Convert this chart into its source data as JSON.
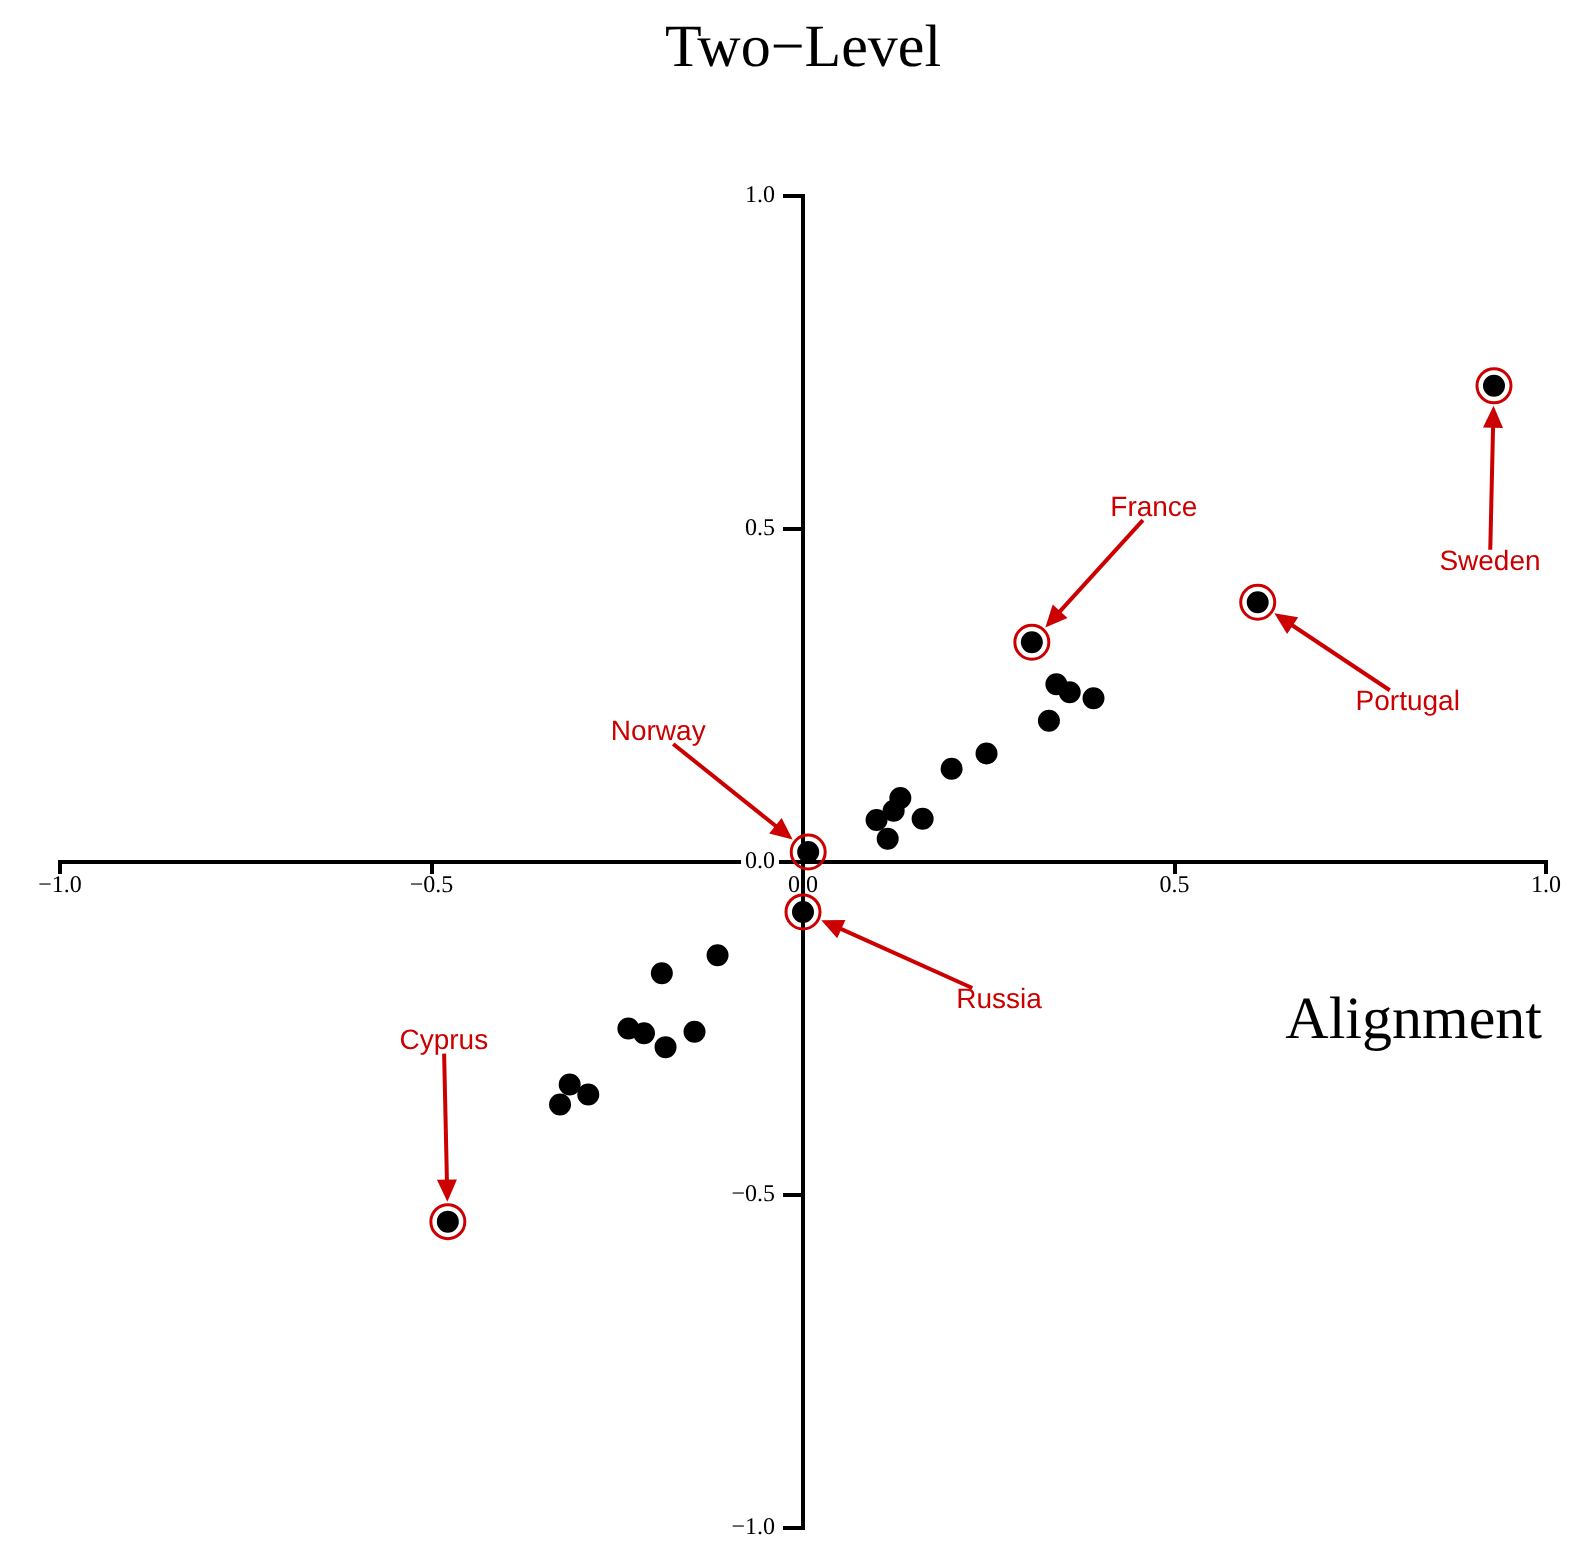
{
  "chart_data": {
    "type": "scatter",
    "xlabel": "Alignment",
    "ylabel": "Two−Level",
    "x": [
      0.93,
      0.612,
      0.308,
      0.007,
      0,
      -0.478,
      -0.115,
      -0.19,
      -0.235,
      -0.214,
      -0.185,
      -0.146,
      -0.314,
      -0.289,
      -0.327,
      0.341,
      0.359,
      0.391,
      0.331,
      0.247,
      0.2,
      0.131,
      0.122,
      0.099,
      0.161,
      0.114
    ],
    "series": [
      {
        "color": "#000000",
        "values": [
          0.715,
          0.39,
          0.33,
          0.015,
          -0.075,
          -0.54,
          -0.14,
          -0.167,
          -0.25,
          -0.257,
          -0.278,
          -0.255,
          -0.334,
          -0.349,
          -0.364,
          0.267,
          0.255,
          0.246,
          0.212,
          0.163,
          0.14,
          0.096,
          0.077,
          0.063,
          0.065,
          0.035
        ]
      }
    ],
    "xlim": [
      -1,
      1
    ],
    "ylim": [
      -1,
      1
    ],
    "xticks": [
      {
        "value": -1,
        "label": "−1.0"
      },
      {
        "value": -0.5,
        "label": "−0.5"
      },
      {
        "value": 0,
        "label": "0.0"
      },
      {
        "value": 0.5,
        "label": "0.5"
      },
      {
        "value": 1,
        "label": "1.0"
      }
    ],
    "yticks": [
      {
        "value": -1,
        "label": "−1.0"
      },
      {
        "value": -0.5,
        "label": "−0.5"
      },
      {
        "value": 0,
        "label": "0.0"
      },
      {
        "value": 0.5,
        "label": "0.5"
      },
      {
        "value": 1,
        "label": "1.0"
      }
    ],
    "grid": false,
    "legend": false,
    "marker": "circle",
    "annotations": [
      "Sweden",
      "Portugal",
      "France",
      "Norway",
      "Russia",
      "Cyprus"
    ]
  }
}
